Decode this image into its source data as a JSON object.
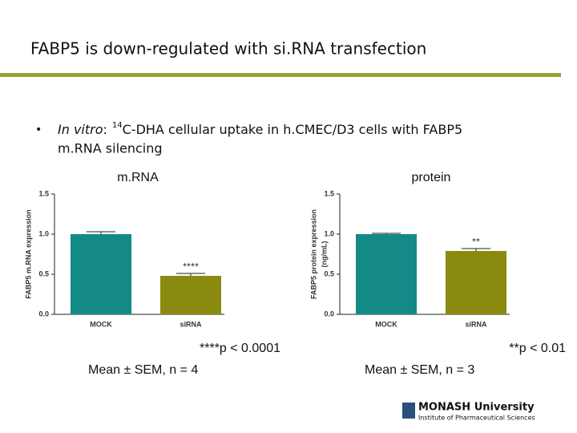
{
  "slide_title": "FABP5 is down-regulated with si.RNA transfection",
  "bullet": {
    "italic": "In vitro",
    "colon": ":",
    "superscript": "14",
    "line1": "C-DHA cellular uptake in h.CMEC/D3 cells with FABP5",
    "line2": "m.RNA silencing"
  },
  "footnotes": [
    [
      "****p < 0.0001",
      "Mean ± SEM, n = 4"
    ],
    [
      "**p < 0.01",
      "Mean ± SEM, n = 3"
    ]
  ],
  "logo": {
    "name": "MONASH University",
    "sub": "Institute of Pharmaceutical Sciences"
  },
  "chart_data": [
    {
      "type": "bar",
      "title": "m.RNA",
      "ylabel": [
        "FABP5 m.RNA expression"
      ],
      "categories": [
        "MOCK",
        "siRNA"
      ],
      "values": [
        1.0,
        0.48
      ],
      "errors": [
        0.03,
        0.03
      ],
      "colors": [
        "#138a88",
        "#8a8a10"
      ],
      "significance": [
        null,
        "****"
      ],
      "ylim": [
        0,
        1.5
      ],
      "yticks": [
        {
          "value": 0,
          "label": "0.0"
        },
        0.5,
        {
          "value": 1,
          "label": "1.0"
        },
        1.5
      ]
    },
    {
      "type": "bar",
      "title": "protein",
      "ylabel": [
        "FABP5 protein expression",
        "(ng/mL)"
      ],
      "categories": [
        "MOCK",
        "siRNA"
      ],
      "values": [
        1.0,
        0.79
      ],
      "errors": [
        0.01,
        0.03
      ],
      "colors": [
        "#138a88",
        "#8a8a10"
      ],
      "significance": [
        null,
        "**"
      ],
      "ylim": [
        0,
        1.5
      ],
      "yticks": [
        {
          "value": 0,
          "label": "0.0"
        },
        0.5,
        {
          "value": 1,
          "label": "1.0"
        },
        1.5
      ]
    }
  ]
}
